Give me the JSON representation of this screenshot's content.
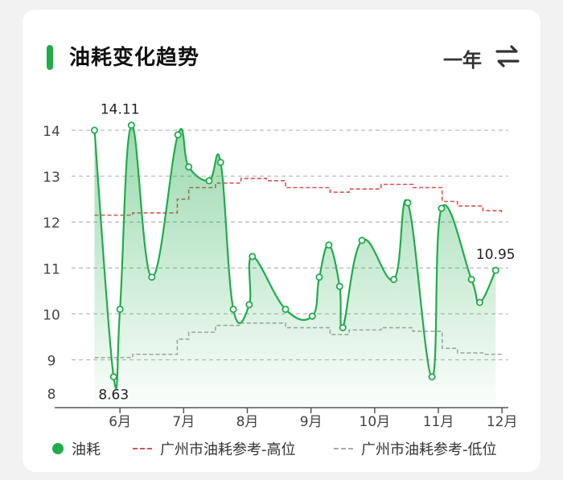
{
  "header": {
    "title": "油耗变化趋势",
    "period": "一年"
  },
  "colors": {
    "accent": "#1fac4b",
    "high_ref": "#d9534f",
    "low_ref": "#aaaaaa",
    "grid": "#bbbbbb"
  },
  "chart_data": {
    "type": "line",
    "title": "油耗变化趋势",
    "xlabel": "",
    "ylabel": "",
    "x_ticks": [
      "6月",
      "7月",
      "8月",
      "9月",
      "10月",
      "11月",
      "12月"
    ],
    "y_ticks": [
      "8",
      "9",
      "10",
      "11",
      "12",
      "13",
      "14"
    ],
    "ylim": [
      8,
      14.4
    ],
    "xlim": [
      5.4,
      12.0
    ],
    "grid": true,
    "legend_position": "bottom",
    "series": [
      {
        "name": "油耗",
        "style": "solid-area",
        "x": [
          5.6,
          5.9,
          6.0,
          6.18,
          6.5,
          6.91,
          7.08,
          7.4,
          7.58,
          7.78,
          8.03,
          8.08,
          8.6,
          9.02,
          9.13,
          9.28,
          9.45,
          9.5,
          9.8,
          10.3,
          10.52,
          10.9,
          11.05,
          11.52,
          11.65,
          11.9
        ],
        "y": [
          14.0,
          8.63,
          10.1,
          14.11,
          10.8,
          13.9,
          13.2,
          12.9,
          13.3,
          10.1,
          10.2,
          11.25,
          10.1,
          9.95,
          10.8,
          11.5,
          10.6,
          9.7,
          11.6,
          10.75,
          12.42,
          8.63,
          12.3,
          10.75,
          10.25,
          10.95
        ]
      },
      {
        "name": "广州市油耗参考-高位",
        "style": "dashed",
        "x": [
          5.6,
          6.2,
          6.9,
          7.08,
          7.5,
          7.9,
          8.3,
          8.6,
          9.3,
          9.6,
          10.1,
          10.6,
          11.06,
          11.3,
          11.7,
          11.99
        ],
        "y": [
          12.15,
          12.2,
          12.5,
          12.75,
          12.85,
          12.95,
          12.9,
          12.75,
          12.65,
          12.72,
          12.82,
          12.75,
          12.45,
          12.35,
          12.25,
          12.2
        ]
      },
      {
        "name": "广州市油耗参考-低位",
        "style": "dashed",
        "x": [
          5.6,
          6.2,
          6.9,
          7.08,
          7.5,
          7.9,
          8.3,
          8.6,
          9.3,
          9.6,
          10.1,
          10.6,
          11.06,
          11.3,
          11.7,
          11.99
        ],
        "y": [
          9.05,
          9.12,
          9.45,
          9.6,
          9.75,
          9.8,
          9.8,
          9.7,
          9.55,
          9.65,
          9.7,
          9.62,
          9.25,
          9.15,
          9.12,
          9.08
        ]
      }
    ],
    "annotations": [
      {
        "text": "14.11",
        "x": 6.0,
        "y": 14.11,
        "anchor": "above"
      },
      {
        "text": "8.63",
        "x": 5.9,
        "y": 8.63,
        "anchor": "below"
      },
      {
        "text": "10.95",
        "x": 11.9,
        "y": 10.95,
        "anchor": "above"
      }
    ]
  }
}
